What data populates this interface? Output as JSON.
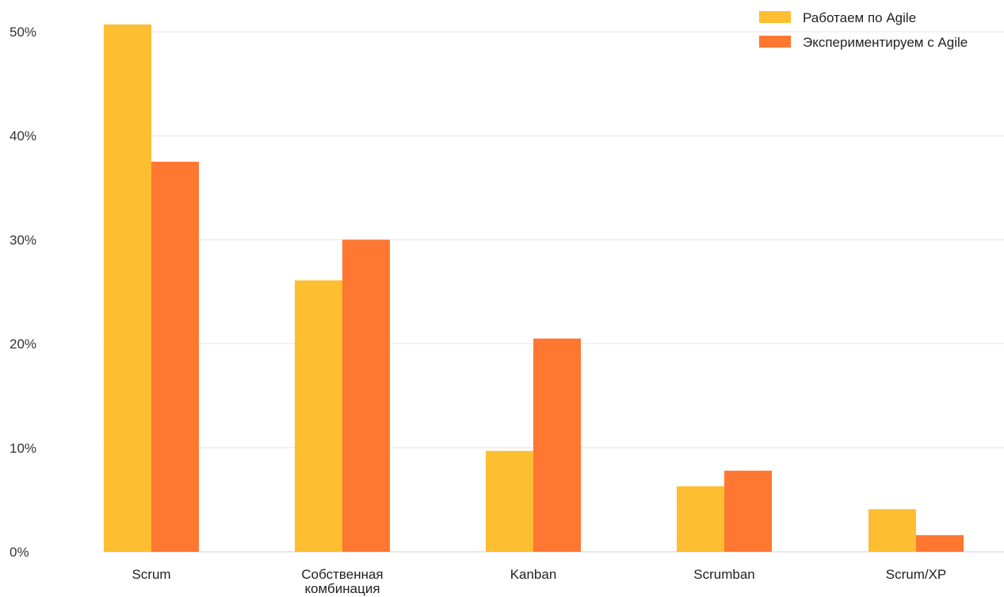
{
  "chart_data": {
    "type": "bar",
    "categories": [
      "Scrum",
      "Собственная\nкомбинация",
      "Kanban",
      "Scrumban",
      "Scrum/XP"
    ],
    "series": [
      {
        "name": "Работаем по Agile",
        "color": "#FDBE31",
        "values": [
          50.7,
          26.1,
          9.7,
          6.3,
          4.1
        ]
      },
      {
        "name": "Экспериментируем с Agile",
        "color": "#FF7731",
        "values": [
          37.5,
          30.0,
          20.5,
          7.8,
          1.6
        ]
      }
    ],
    "title": "",
    "xlabel": "",
    "ylabel": "",
    "ylim": [
      0,
      50
    ],
    "yticks": [
      0,
      10,
      20,
      30,
      40,
      50
    ],
    "ytick_labels": [
      "0%",
      "10%",
      "20%",
      "30%",
      "40%",
      "50%"
    ],
    "grid": true,
    "legend": "top-right"
  }
}
